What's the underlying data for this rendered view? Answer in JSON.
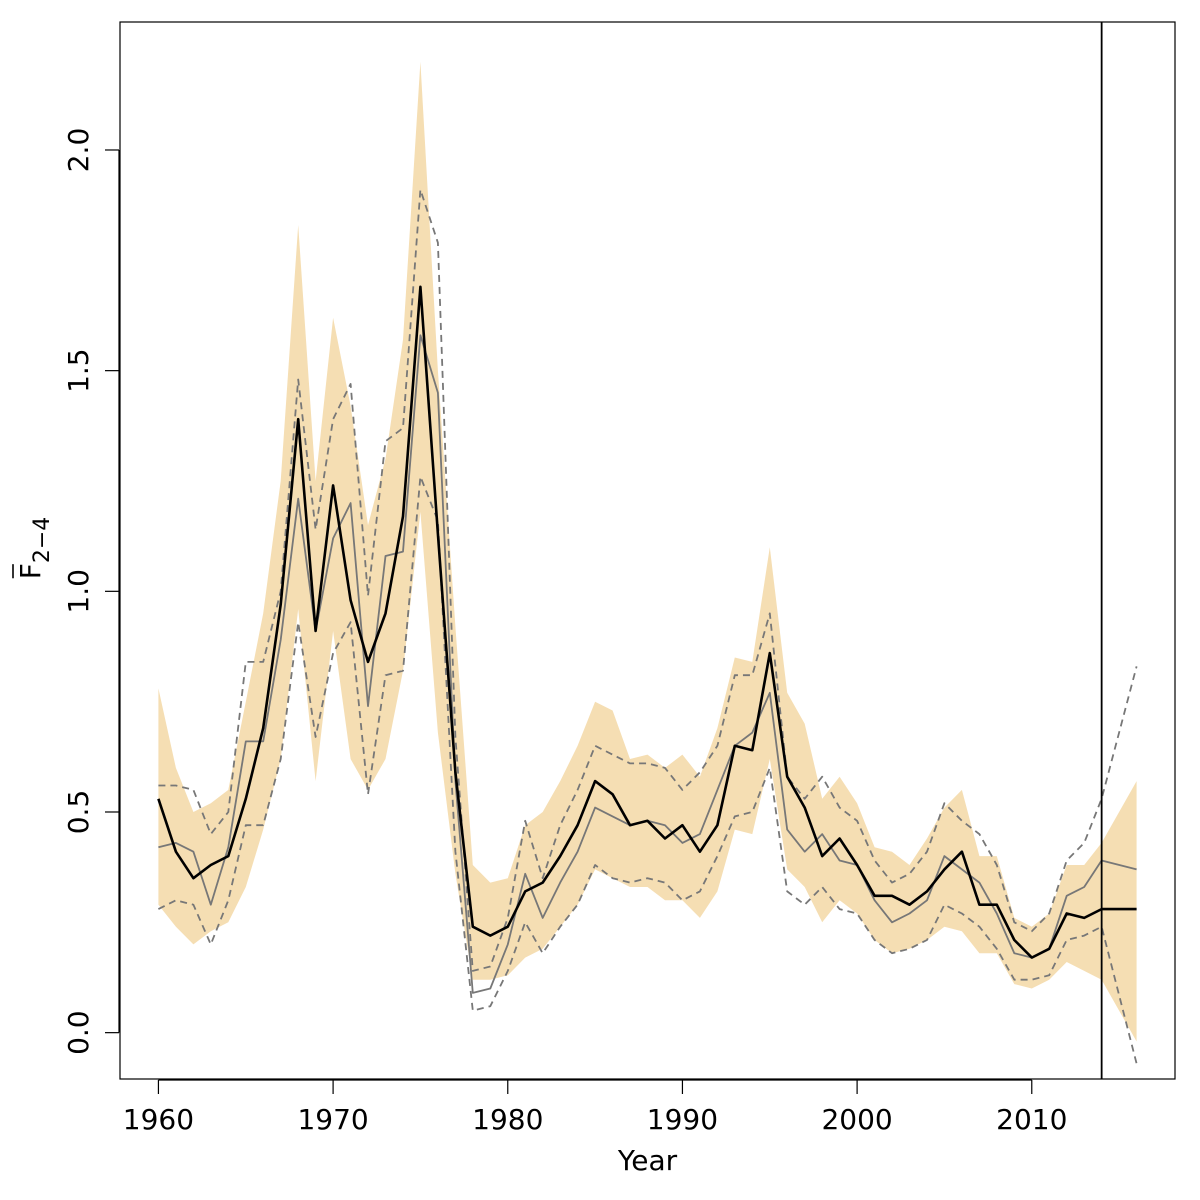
{
  "chart_data": {
    "type": "line",
    "title": "",
    "xlabel": "Year",
    "ylabel_main": "F",
    "ylabel_subscript": "2−4",
    "xlim": [
      1957.8,
      2018.2
    ],
    "ylim": [
      -0.105,
      2.29
    ],
    "x_ticks": [
      1960,
      1970,
      1980,
      1990,
      2000,
      2010
    ],
    "x_tick_labels": [
      "1960",
      "1970",
      "1980",
      "1990",
      "2000",
      "2010"
    ],
    "y_ticks": [
      0.0,
      0.5,
      1.0,
      1.5,
      2.0
    ],
    "y_tick_labels": [
      "0.0",
      "0.5",
      "1.0",
      "1.5",
      "2.0"
    ],
    "vline_year": 2014,
    "colors": {
      "band": "#f5deb3",
      "estimate": "#000000",
      "comparison": "#777777"
    },
    "x": [
      1960,
      1961,
      1962,
      1963,
      1964,
      1965,
      1966,
      1967,
      1968,
      1969,
      1970,
      1971,
      1972,
      1973,
      1974,
      1975,
      1976,
      1977,
      1978,
      1979,
      1980,
      1981,
      1982,
      1983,
      1984,
      1985,
      1986,
      1987,
      1988,
      1989,
      1990,
      1991,
      1992,
      1993,
      1994,
      1995,
      1996,
      1997,
      1998,
      1999,
      2000,
      2001,
      2002,
      2003,
      2004,
      2005,
      2006,
      2007,
      2008,
      2009,
      2010,
      2011,
      2012,
      2013,
      2014,
      2016
    ],
    "series": [
      {
        "name": "confidence band",
        "style": "band",
        "upper": [
          0.78,
          0.6,
          0.5,
          0.52,
          0.55,
          0.75,
          0.95,
          1.25,
          1.83,
          1.25,
          1.62,
          1.42,
          1.15,
          1.3,
          1.57,
          2.2,
          1.5,
          0.92,
          0.38,
          0.34,
          0.35,
          0.47,
          0.5,
          0.57,
          0.65,
          0.75,
          0.73,
          0.62,
          0.63,
          0.6,
          0.63,
          0.58,
          0.69,
          0.85,
          0.84,
          1.1,
          0.77,
          0.7,
          0.53,
          0.58,
          0.52,
          0.42,
          0.41,
          0.38,
          0.44,
          0.51,
          0.55,
          0.4,
          0.4,
          0.26,
          0.24,
          0.27,
          0.38,
          0.38,
          0.43,
          0.57
        ],
        "lower": [
          0.29,
          0.24,
          0.2,
          0.23,
          0.25,
          0.33,
          0.46,
          0.62,
          0.96,
          0.57,
          0.91,
          0.62,
          0.55,
          0.62,
          0.82,
          1.18,
          0.68,
          0.36,
          0.12,
          0.12,
          0.13,
          0.17,
          0.19,
          0.24,
          0.29,
          0.37,
          0.35,
          0.33,
          0.33,
          0.3,
          0.3,
          0.26,
          0.32,
          0.46,
          0.45,
          0.62,
          0.37,
          0.33,
          0.25,
          0.3,
          0.27,
          0.21,
          0.18,
          0.19,
          0.21,
          0.24,
          0.23,
          0.18,
          0.18,
          0.11,
          0.1,
          0.12,
          0.16,
          0.14,
          0.12,
          -0.02
        ]
      },
      {
        "name": "estimate",
        "style": "solid-black",
        "values": [
          0.53,
          0.41,
          0.35,
          0.38,
          0.4,
          0.53,
          0.69,
          0.97,
          1.39,
          0.91,
          1.24,
          0.98,
          0.84,
          0.95,
          1.17,
          1.69,
          1.13,
          0.59,
          0.24,
          0.22,
          0.24,
          0.32,
          0.34,
          0.4,
          0.47,
          0.57,
          0.54,
          0.47,
          0.48,
          0.44,
          0.47,
          0.41,
          0.47,
          0.65,
          0.64,
          0.86,
          0.58,
          0.51,
          0.4,
          0.44,
          0.38,
          0.31,
          0.31,
          0.29,
          0.32,
          0.37,
          0.41,
          0.29,
          0.29,
          0.21,
          0.17,
          0.19,
          0.27,
          0.26,
          0.28,
          0.28
        ]
      },
      {
        "name": "comparison",
        "style": "solid-gray",
        "values": [
          0.42,
          0.43,
          0.41,
          0.29,
          0.42,
          0.66,
          0.66,
          0.89,
          1.21,
          0.91,
          1.12,
          1.2,
          0.74,
          1.08,
          1.09,
          1.58,
          1.45,
          0.57,
          0.09,
          0.1,
          0.2,
          0.36,
          0.26,
          0.34,
          0.41,
          0.51,
          0.49,
          0.47,
          0.48,
          0.47,
          0.43,
          0.45,
          0.55,
          0.65,
          0.68,
          0.77,
          0.46,
          0.41,
          0.45,
          0.39,
          0.38,
          0.3,
          0.25,
          0.27,
          0.3,
          0.4,
          0.37,
          0.34,
          0.27,
          0.18,
          0.17,
          0.19,
          0.31,
          0.33,
          0.39,
          0.37
        ]
      },
      {
        "name": "upper dashed",
        "style": "dashed-gray",
        "values": [
          0.56,
          0.56,
          0.55,
          0.45,
          0.5,
          0.84,
          0.84,
          1.0,
          1.48,
          1.14,
          1.39,
          1.47,
          0.99,
          1.34,
          1.37,
          1.91,
          1.79,
          0.67,
          0.14,
          0.15,
          0.26,
          0.48,
          0.35,
          0.47,
          0.55,
          0.65,
          0.63,
          0.61,
          0.61,
          0.6,
          0.55,
          0.59,
          0.65,
          0.81,
          0.81,
          0.95,
          0.58,
          0.53,
          0.58,
          0.51,
          0.48,
          0.39,
          0.34,
          0.36,
          0.41,
          0.52,
          0.48,
          0.45,
          0.38,
          0.25,
          0.23,
          0.27,
          0.39,
          0.43,
          0.53,
          0.83
        ]
      },
      {
        "name": "lower dashed",
        "style": "dashed-gray",
        "values": [
          0.28,
          0.3,
          0.29,
          0.2,
          0.3,
          0.47,
          0.47,
          0.62,
          0.93,
          0.67,
          0.86,
          0.93,
          0.54,
          0.81,
          0.82,
          1.26,
          1.16,
          0.41,
          0.05,
          0.06,
          0.14,
          0.25,
          0.18,
          0.24,
          0.29,
          0.38,
          0.35,
          0.34,
          0.35,
          0.34,
          0.3,
          0.32,
          0.4,
          0.49,
          0.5,
          0.6,
          0.32,
          0.29,
          0.33,
          0.28,
          0.27,
          0.21,
          0.18,
          0.19,
          0.21,
          0.29,
          0.27,
          0.24,
          0.19,
          0.12,
          0.12,
          0.13,
          0.21,
          0.22,
          0.24,
          -0.07
        ]
      }
    ]
  }
}
